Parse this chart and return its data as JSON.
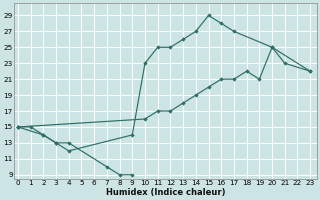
{
  "xlabel": "Humidex (Indice chaleur)",
  "bg_color": "#cde4e4",
  "grid_color": "#ffffff",
  "line_color": "#2d6e65",
  "xlim": [
    -0.3,
    23.5
  ],
  "ylim": [
    8.5,
    30.5
  ],
  "yticks": [
    9,
    11,
    13,
    15,
    17,
    19,
    21,
    23,
    25,
    27,
    29
  ],
  "xticks": [
    0,
    1,
    2,
    3,
    4,
    5,
    6,
    7,
    8,
    9,
    10,
    11,
    12,
    13,
    14,
    15,
    16,
    17,
    18,
    19,
    20,
    21,
    22,
    23
  ],
  "line1_x": [
    0,
    1,
    2,
    3,
    4,
    9,
    10,
    11,
    12,
    13,
    14,
    15,
    16,
    17,
    20,
    21,
    23
  ],
  "line1_y": [
    15,
    15,
    14,
    13,
    12,
    14,
    23,
    25,
    25,
    26,
    27,
    29,
    28,
    27,
    25,
    23,
    22
  ],
  "line2_x": [
    0,
    10,
    11,
    12,
    13,
    14,
    15,
    16,
    17,
    18,
    19,
    20,
    23
  ],
  "line2_y": [
    15,
    16,
    17,
    17,
    18,
    19,
    20,
    21,
    21,
    22,
    21,
    25,
    22
  ],
  "line3_x": [
    0,
    2,
    3,
    4,
    7,
    8,
    9
  ],
  "line3_y": [
    15,
    14,
    13,
    13,
    10,
    9,
    9
  ],
  "xlabel_fontsize": 6.0,
  "tick_fontsize": 5.2,
  "lw": 0.85,
  "ms": 2.2
}
